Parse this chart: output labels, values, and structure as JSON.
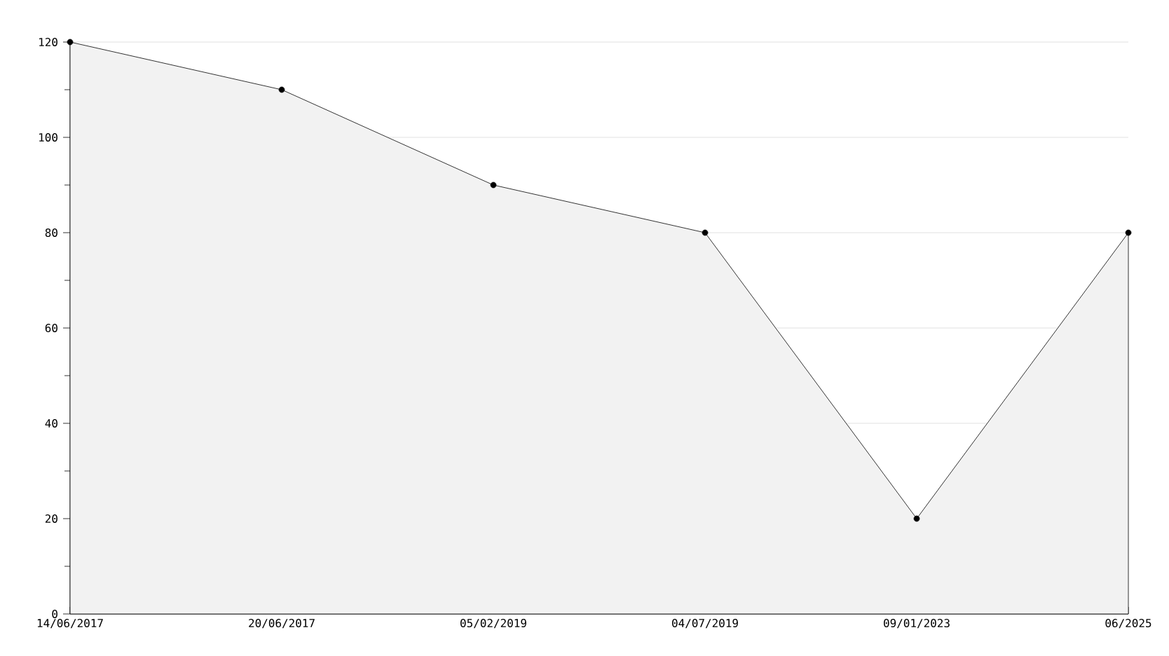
{
  "chart_data": {
    "type": "area",
    "categories": [
      "14/06/2017",
      "20/06/2017",
      "05/02/2019",
      "04/07/2019",
      "09/01/2023",
      "06/2025"
    ],
    "values": [
      120,
      110,
      90,
      80,
      20,
      80
    ],
    "color": "#000000",
    "ylim": [
      0,
      120
    ],
    "yticks": [
      0,
      {
        "value": 10,
        "label": null
      },
      20,
      {
        "value": 30,
        "label": null
      },
      40,
      {
        "value": 50,
        "label": null
      },
      60,
      {
        "value": 70,
        "label": null
      },
      80,
      {
        "value": 90,
        "label": null
      },
      100,
      {
        "value": 110,
        "label": null
      },
      120
    ],
    "grid": "y",
    "marker": "circle"
  }
}
